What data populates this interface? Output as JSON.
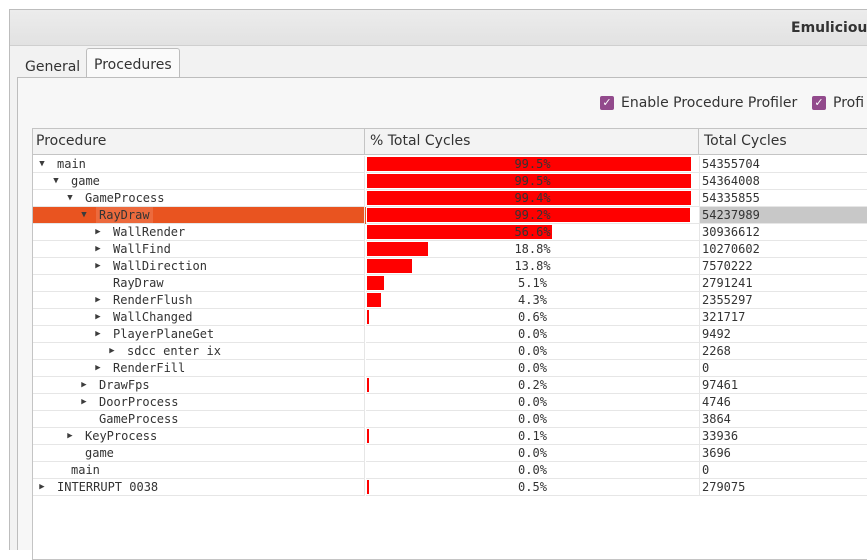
{
  "window": {
    "title": "Emulicious"
  },
  "tabs": [
    {
      "label": "General"
    },
    {
      "label": "Procedures"
    }
  ],
  "options": {
    "enable_profiler": "Enable Procedure Profiler",
    "profile_other": "Profi"
  },
  "columns": {
    "procedure": "Procedure",
    "percent": "% Total Cycles",
    "total": "Total Cycles"
  },
  "colors": {
    "bar": "#ff0000",
    "selected": "#e95420",
    "checkbox": "#924a8c"
  },
  "rows": [
    {
      "name": "main",
      "depth": 0,
      "expander": "expanded",
      "fraction": 0.995,
      "percent": "99.5%",
      "cycles": "54355704"
    },
    {
      "name": "game",
      "depth": 1,
      "expander": "expanded",
      "fraction": 0.995,
      "percent": "99.5%",
      "cycles": "54364008"
    },
    {
      "name": "GameProcess",
      "depth": 2,
      "expander": "expanded",
      "fraction": 0.994,
      "percent": "99.4%",
      "cycles": "54335855"
    },
    {
      "name": "RayDraw",
      "depth": 3,
      "expander": "expanded",
      "fraction": 0.992,
      "percent": "99.2%",
      "cycles": "54237989",
      "selected": true
    },
    {
      "name": "WallRender",
      "depth": 4,
      "expander": "collapsed",
      "fraction": 0.566,
      "percent": "56.6%",
      "cycles": "30936612"
    },
    {
      "name": "WallFind",
      "depth": 4,
      "expander": "collapsed",
      "fraction": 0.188,
      "percent": "18.8%",
      "cycles": "10270602"
    },
    {
      "name": "WallDirection",
      "depth": 4,
      "expander": "collapsed",
      "fraction": 0.138,
      "percent": "13.8%",
      "cycles": "7570222"
    },
    {
      "name": "RayDraw",
      "depth": 4,
      "expander": "none",
      "fraction": 0.051,
      "percent": "5.1%",
      "cycles": "2791241"
    },
    {
      "name": "RenderFlush",
      "depth": 4,
      "expander": "collapsed",
      "fraction": 0.043,
      "percent": "4.3%",
      "cycles": "2355297"
    },
    {
      "name": "WallChanged",
      "depth": 4,
      "expander": "collapsed",
      "fraction": 0.006,
      "percent": "0.6%",
      "cycles": "321717"
    },
    {
      "name": "PlayerPlaneGet",
      "depth": 4,
      "expander": "collapsed",
      "fraction": 0.0,
      "percent": "0.0%",
      "cycles": "9492"
    },
    {
      "name": "sdcc enter ix",
      "depth": 5,
      "expander": "collapsed",
      "fraction": 0.0,
      "percent": "0.0%",
      "cycles": "2268"
    },
    {
      "name": "RenderFill",
      "depth": 4,
      "expander": "collapsed",
      "fraction": 0.0,
      "percent": "0.0%",
      "cycles": "0"
    },
    {
      "name": "DrawFps",
      "depth": 3,
      "expander": "collapsed",
      "fraction": 0.002,
      "percent": "0.2%",
      "cycles": "97461"
    },
    {
      "name": "DoorProcess",
      "depth": 3,
      "expander": "collapsed",
      "fraction": 0.0,
      "percent": "0.0%",
      "cycles": "4746"
    },
    {
      "name": "GameProcess",
      "depth": 3,
      "expander": "none",
      "fraction": 0.0,
      "percent": "0.0%",
      "cycles": "3864"
    },
    {
      "name": "KeyProcess",
      "depth": 2,
      "expander": "collapsed",
      "fraction": 0.001,
      "percent": "0.1%",
      "cycles": "33936"
    },
    {
      "name": "game",
      "depth": 2,
      "expander": "none",
      "fraction": 0.0,
      "percent": "0.0%",
      "cycles": "3696"
    },
    {
      "name": "main",
      "depth": 1,
      "expander": "none",
      "fraction": 0.0,
      "percent": "0.0%",
      "cycles": "0"
    },
    {
      "name": "INTERRUPT 0038",
      "depth": 0,
      "expander": "collapsed",
      "fraction": 0.005,
      "percent": "0.5%",
      "cycles": "279075"
    }
  ]
}
